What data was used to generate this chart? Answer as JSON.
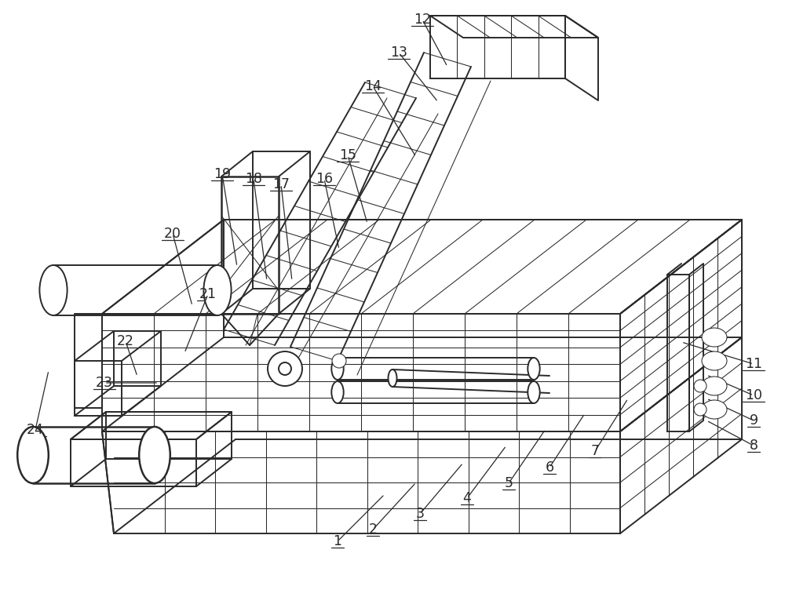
{
  "background_color": "#ffffff",
  "line_color": "#2a2a2a",
  "lw": 1.4,
  "tlw": 0.75,
  "flw": 1.8,
  "label_fontsize": 12.5,
  "labels": {
    "1": [
      430,
      690,
      490,
      630
    ],
    "2": [
      475,
      675,
      530,
      615
    ],
    "3": [
      535,
      655,
      590,
      590
    ],
    "4": [
      595,
      635,
      645,
      568
    ],
    "5": [
      648,
      616,
      695,
      547
    ],
    "6": [
      700,
      596,
      745,
      527
    ],
    "7": [
      758,
      575,
      800,
      508
    ],
    "8": [
      960,
      568,
      900,
      536
    ],
    "9": [
      960,
      536,
      900,
      508
    ],
    "10": [
      960,
      504,
      900,
      478
    ],
    "11": [
      960,
      464,
      868,
      436
    ],
    "12": [
      538,
      25,
      570,
      85
    ],
    "13": [
      508,
      67,
      558,
      130
    ],
    "14": [
      475,
      110,
      530,
      200
    ],
    "15": [
      443,
      198,
      468,
      285
    ],
    "16": [
      413,
      228,
      432,
      318
    ],
    "17": [
      358,
      235,
      372,
      358
    ],
    "18": [
      323,
      228,
      340,
      358
    ],
    "19": [
      283,
      222,
      302,
      340
    ],
    "20": [
      220,
      298,
      245,
      390
    ],
    "21": [
      265,
      375,
      235,
      450
    ],
    "22": [
      160,
      435,
      175,
      480
    ],
    "23": [
      133,
      488,
      202,
      488
    ],
    "24": [
      45,
      548,
      62,
      472
    ]
  }
}
